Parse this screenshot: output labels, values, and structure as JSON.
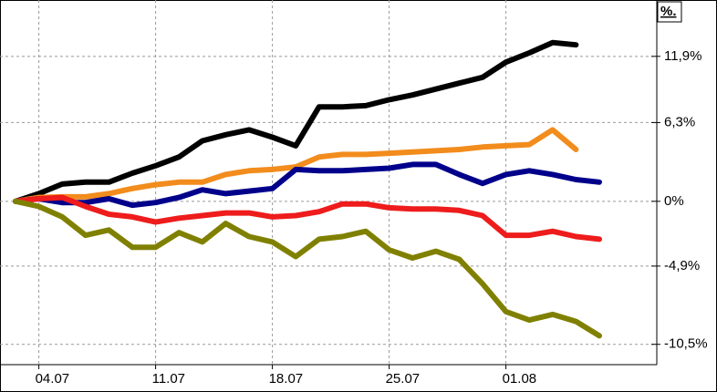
{
  "chart_data": {
    "type": "line",
    "y_unit_label": "%.",
    "log_scale": true,
    "grid": true,
    "categories": [
      null,
      "04.07",
      null,
      null,
      null,
      null,
      "11.07",
      null,
      null,
      null,
      null,
      "18.07",
      null,
      null,
      null,
      null,
      "25.07",
      null,
      null,
      null,
      null,
      "01.08",
      null,
      null,
      null,
      null
    ],
    "series": [
      {
        "color": "#000000",
        "values": [
          0,
          0.6,
          1.35,
          1.5,
          1.5,
          2.2,
          2.8,
          3.5,
          4.8,
          5.3,
          5.7,
          5.1,
          4.4,
          7.6,
          7.6,
          7.7,
          8.2,
          8.6,
          9.1,
          9.6,
          10.1,
          11.4,
          12.2,
          13.1,
          12.9,
          null
        ]
      },
      {
        "color": "#f28c1c",
        "values": [
          0,
          0.3,
          0.35,
          0.35,
          0.6,
          1.0,
          1.3,
          1.5,
          1.5,
          2.1,
          2.4,
          2.5,
          2.7,
          3.5,
          3.7,
          3.7,
          3.8,
          3.9,
          4.0,
          4.1,
          4.3,
          4.4,
          4.5,
          5.7,
          4.1,
          null
        ]
      },
      {
        "color": "#00008b",
        "values": [
          0,
          0.2,
          -0.1,
          -0.1,
          0.2,
          -0.3,
          -0.1,
          0.3,
          0.9,
          0.6,
          0.8,
          1.0,
          2.5,
          2.4,
          2.4,
          2.5,
          2.6,
          2.9,
          2.9,
          2.1,
          1.4,
          2.1,
          2.4,
          2.1,
          1.7,
          1.5
        ]
      },
      {
        "color": "#ee1c1c",
        "values": [
          0,
          0.2,
          0.3,
          -0.4,
          -1.0,
          -1.2,
          -1.6,
          -1.3,
          -1.1,
          -0.9,
          -0.9,
          -1.2,
          -1.1,
          -0.8,
          -0.2,
          -0.2,
          -0.5,
          -0.6,
          -0.6,
          -0.7,
          -1.1,
          -2.6,
          -2.6,
          -2.3,
          -2.7,
          -2.9
        ]
      },
      {
        "color": "#808000",
        "values": [
          0,
          -0.4,
          -1.2,
          -2.6,
          -2.2,
          -3.5,
          -3.5,
          -2.4,
          -3.1,
          -1.7,
          -2.7,
          -3.1,
          -4.2,
          -2.9,
          -2.7,
          -2.3,
          -3.7,
          -4.3,
          -3.8,
          -4.4,
          -6.2,
          -8.2,
          -8.8,
          -8.4,
          -8.9,
          -9.9
        ]
      }
    ],
    "ylim": [
      -11.9,
      16.9
    ],
    "yticks": [
      {
        "value": 11.9,
        "label": "11,9%"
      },
      {
        "value": 6.3,
        "label": "6,3%"
      },
      {
        "value": 0,
        "label": "0%"
      },
      {
        "value": -4.9,
        "label": "-4,9%"
      },
      {
        "value": -10.5,
        "label": "-10,5%"
      }
    ]
  }
}
